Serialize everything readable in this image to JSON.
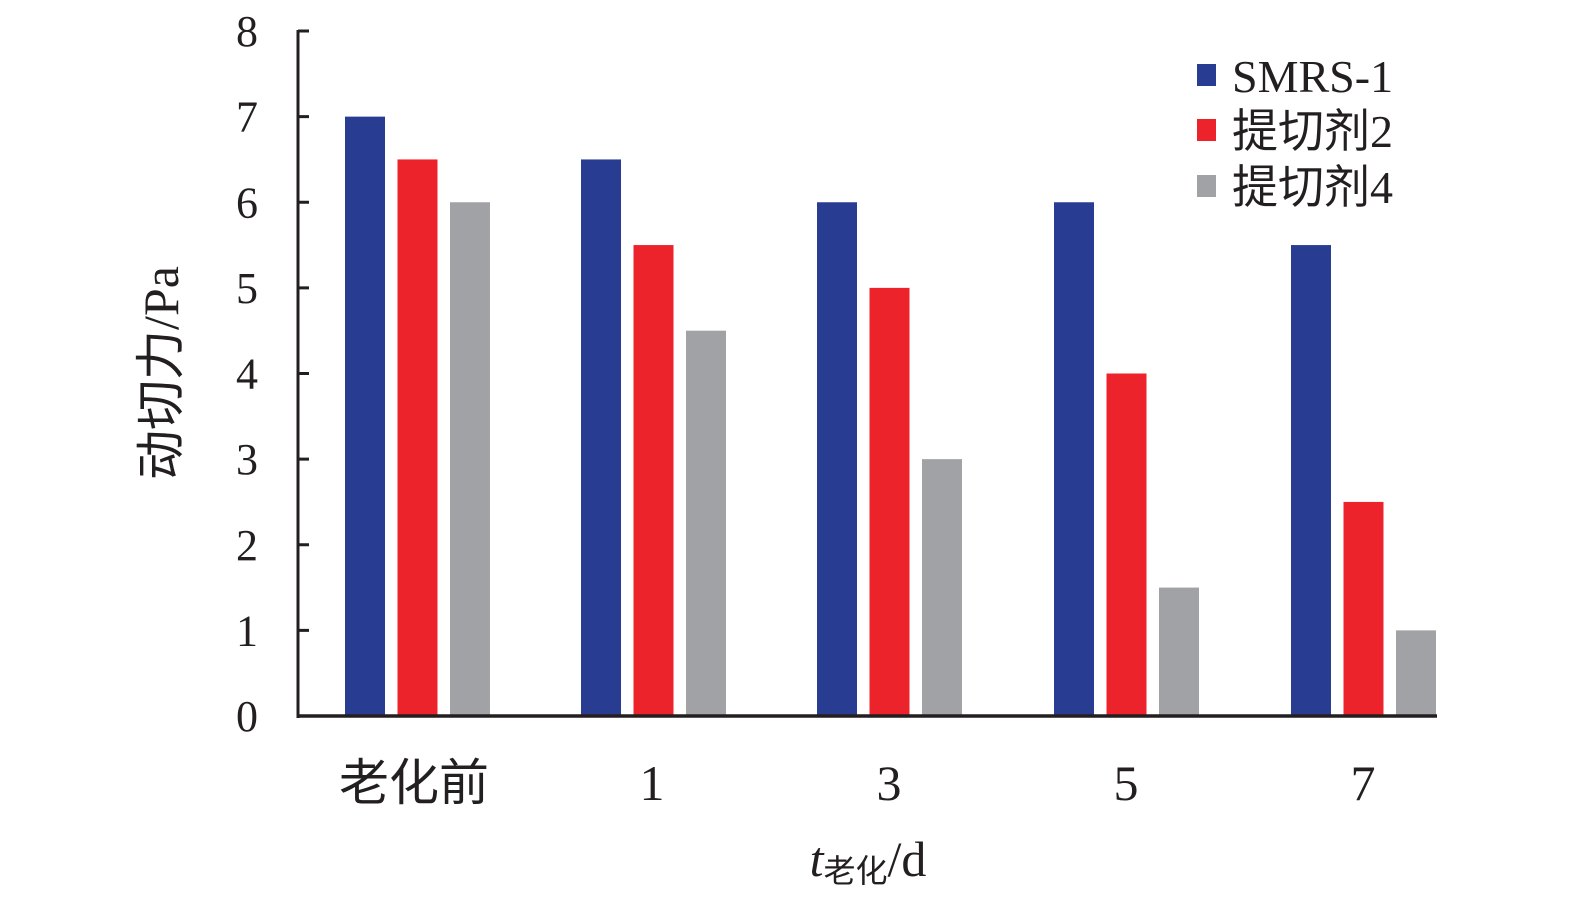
{
  "chart_data": {
    "type": "bar",
    "categories": [
      "老化前",
      "1",
      "3",
      "5",
      "7"
    ],
    "series": [
      {
        "name": "SMRS-1",
        "values": [
          7.0,
          6.5,
          6.0,
          6.0,
          5.5
        ],
        "color": "#283d92"
      },
      {
        "name": "提切剂2",
        "values": [
          6.5,
          5.5,
          5.0,
          4.0,
          2.5
        ],
        "color": "#ed232b"
      },
      {
        "name": "提切剂4",
        "values": [
          6.0,
          4.5,
          3.0,
          1.5,
          1.0
        ],
        "color": "#a1a2a5"
      }
    ],
    "title": "",
    "ylabel": "动切力/Pa",
    "xlabel": {
      "main": "t",
      "sub": "老化",
      "unit": "/d"
    },
    "ylim": [
      0,
      8
    ],
    "yticks": [
      "0",
      "1",
      "2",
      "3",
      "4",
      "5",
      "6",
      "7",
      "8"
    ],
    "grid": false,
    "legend_position": "top-right"
  }
}
